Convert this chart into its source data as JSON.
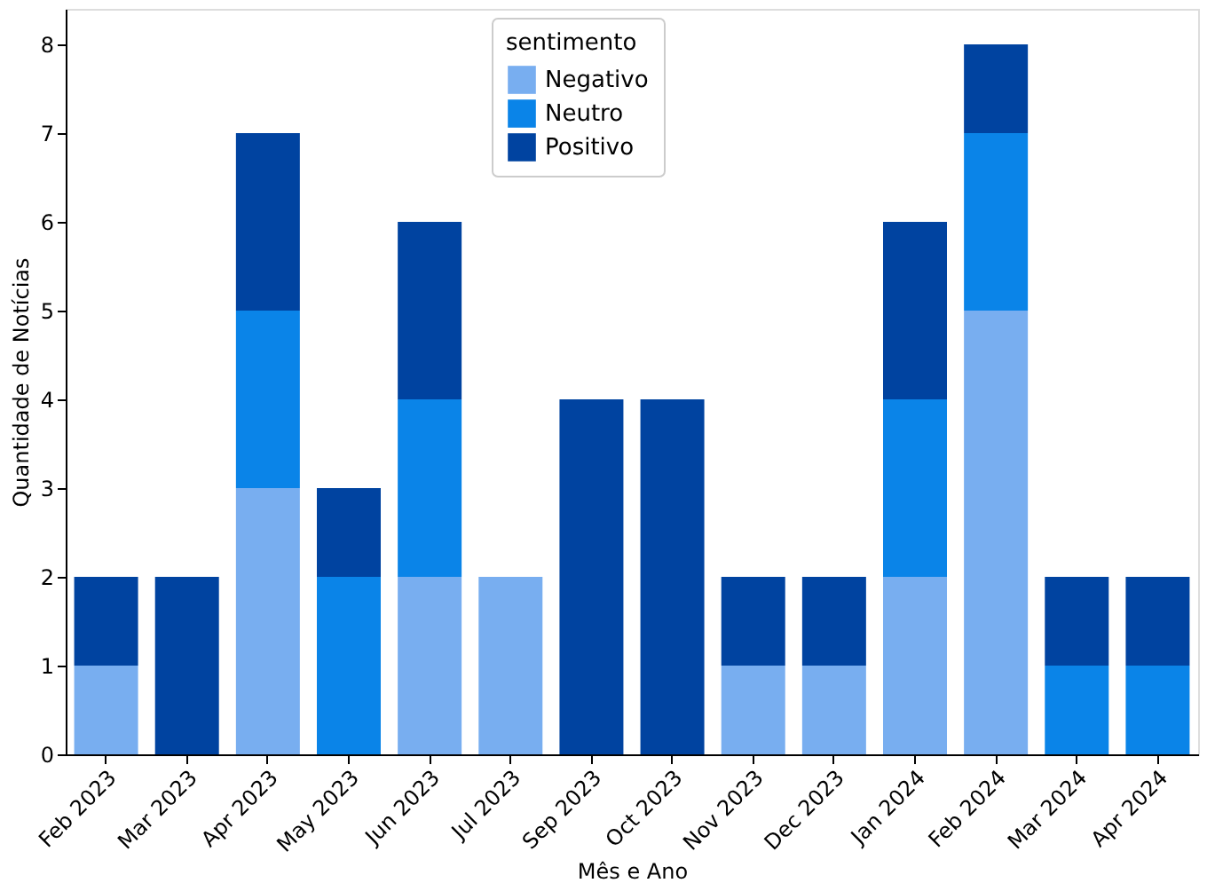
{
  "chart_data": {
    "type": "bar",
    "stacked": true,
    "xlabel": "Mês e Ano",
    "ylabel": "Quantidade de Notícias",
    "legend_title": "sentimento",
    "legend": "top",
    "categories": [
      "Feb 2023",
      "Mar 2023",
      "Apr 2023",
      "May 2023",
      "Jun 2023",
      "Jul 2023",
      "Sep 2023",
      "Oct 2023",
      "Nov 2023",
      "Dec 2023",
      "Jan 2024",
      "Feb 2024",
      "Mar 2024",
      "Apr 2024"
    ],
    "series": [
      {
        "name": "Negativo",
        "color": "#78aef0",
        "values": [
          1,
          0,
          3,
          0,
          2,
          2,
          0,
          0,
          1,
          1,
          2,
          5,
          0,
          0
        ]
      },
      {
        "name": "Neutro",
        "color": "#0a84e8",
        "values": [
          0,
          0,
          2,
          2,
          2,
          0,
          0,
          0,
          0,
          0,
          2,
          2,
          1,
          1
        ]
      },
      {
        "name": "Positivo",
        "color": "#0043a0",
        "values": [
          1,
          2,
          2,
          1,
          2,
          0,
          4,
          4,
          1,
          1,
          2,
          1,
          1,
          1
        ]
      }
    ],
    "ylim": [
      0,
      8.4
    ],
    "yticks": [
      0,
      1,
      2,
      3,
      4,
      5,
      6,
      7,
      8
    ],
    "grid": false
  }
}
